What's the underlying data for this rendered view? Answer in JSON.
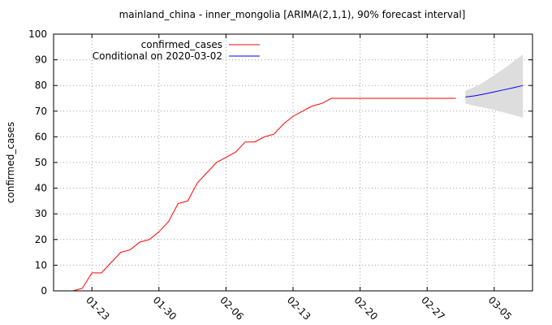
{
  "chart_data": {
    "type": "line",
    "title": "mainland_china - inner_mongolia [ARIMA(2,1,1), 90% forecast interval]",
    "xlabel": "",
    "ylabel": "confirmed_cases",
    "ylim": [
      0,
      100
    ],
    "yticks": [
      "0",
      "10",
      "20",
      "30",
      "40",
      "50",
      "60",
      "70",
      "80",
      "90",
      "100"
    ],
    "xlim": [
      "2020-01-19",
      "2020-03-09"
    ],
    "xticks": [
      {
        "date": "2020-01-23",
        "label": "01-23"
      },
      {
        "date": "2020-01-30",
        "label": "01-30"
      },
      {
        "date": "2020-02-06",
        "label": "02-06"
      },
      {
        "date": "2020-02-13",
        "label": "02-13"
      },
      {
        "date": "2020-02-20",
        "label": "02-20"
      },
      {
        "date": "2020-02-27",
        "label": "02-27"
      },
      {
        "date": "2020-03-05",
        "label": "03-05"
      }
    ],
    "grid": true,
    "legend_position": "top-left",
    "series": [
      {
        "name": "confirmed_cases",
        "color": "#ff0000",
        "points": [
          [
            "2020-01-21",
            0
          ],
          [
            "2020-01-22",
            1
          ],
          [
            "2020-01-23",
            7
          ],
          [
            "2020-01-24",
            7
          ],
          [
            "2020-01-25",
            11
          ],
          [
            "2020-01-26",
            15
          ],
          [
            "2020-01-27",
            16
          ],
          [
            "2020-01-28",
            19
          ],
          [
            "2020-01-29",
            20
          ],
          [
            "2020-01-30",
            23
          ],
          [
            "2020-01-31",
            27
          ],
          [
            "2020-02-01",
            34
          ],
          [
            "2020-02-02",
            35
          ],
          [
            "2020-02-03",
            42
          ],
          [
            "2020-02-04",
            46
          ],
          [
            "2020-02-05",
            50
          ],
          [
            "2020-02-06",
            52
          ],
          [
            "2020-02-07",
            54
          ],
          [
            "2020-02-08",
            58
          ],
          [
            "2020-02-09",
            58
          ],
          [
            "2020-02-10",
            60
          ],
          [
            "2020-02-11",
            61
          ],
          [
            "2020-02-12",
            65
          ],
          [
            "2020-02-13",
            68
          ],
          [
            "2020-02-14",
            70
          ],
          [
            "2020-02-15",
            72
          ],
          [
            "2020-02-16",
            73
          ],
          [
            "2020-02-17",
            75
          ],
          [
            "2020-02-18",
            75
          ],
          [
            "2020-02-19",
            75
          ],
          [
            "2020-02-20",
            75
          ],
          [
            "2020-02-21",
            75
          ],
          [
            "2020-02-22",
            75
          ],
          [
            "2020-02-23",
            75
          ],
          [
            "2020-02-24",
            75
          ],
          [
            "2020-02-25",
            75
          ],
          [
            "2020-02-26",
            75
          ],
          [
            "2020-02-27",
            75
          ],
          [
            "2020-02-28",
            75
          ],
          [
            "2020-02-29",
            75
          ],
          [
            "2020-03-01",
            75
          ]
        ]
      },
      {
        "name": "Conditional on 2020-03-02",
        "color": "#0000ff",
        "points": [
          [
            "2020-03-02",
            75.5
          ],
          [
            "2020-03-03",
            76
          ],
          [
            "2020-03-04",
            76.7
          ],
          [
            "2020-03-05",
            77.5
          ],
          [
            "2020-03-06",
            78.3
          ],
          [
            "2020-03-07",
            79.1
          ],
          [
            "2020-03-08",
            80
          ]
        ]
      }
    ],
    "interval": {
      "label": "90% forecast interval",
      "color": "#dddddd",
      "points": [
        [
          "2020-03-02",
          73,
          78
        ],
        [
          "2020-03-03",
          72,
          79.5
        ],
        [
          "2020-03-04",
          71.3,
          81.5
        ],
        [
          "2020-03-05",
          70.5,
          84
        ],
        [
          "2020-03-06",
          69.5,
          86.5
        ],
        [
          "2020-03-07",
          68.5,
          89.3
        ],
        [
          "2020-03-08",
          67.5,
          92
        ]
      ]
    }
  }
}
